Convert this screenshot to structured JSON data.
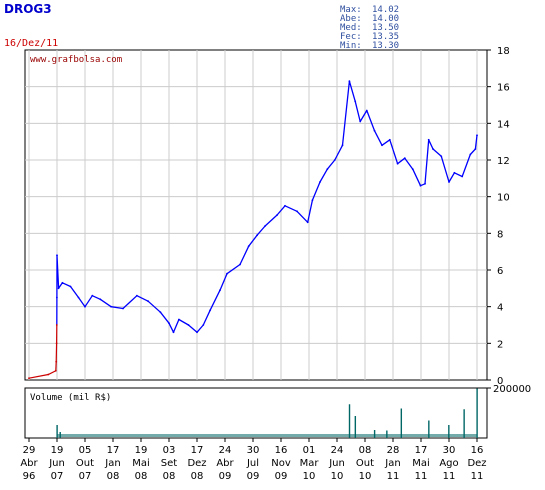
{
  "header": {
    "ticker": "DROG3",
    "date": "16/Dez/11",
    "watermark": "www.grafbolsa.com",
    "stats": [
      {
        "label": "Max:",
        "value": "14.02"
      },
      {
        "label": "Abe:",
        "value": "14.00"
      },
      {
        "label": "Med:",
        "value": "13.50"
      },
      {
        "label": "Fec:",
        "value": "13.35"
      },
      {
        "label": "Min:",
        "value": "13.30"
      }
    ]
  },
  "colors": {
    "ticker": "#0000cc",
    "date": "#cc0000",
    "watermark": "#990000",
    "stats": "#2f4f9f",
    "price_line": "#0000ff",
    "volume_bars": "#006666",
    "grid": "#cccccc",
    "frame": "#000000",
    "early_price": "#cc0000"
  },
  "chart_data": [
    {
      "type": "line",
      "name": "price",
      "y_range": [
        0,
        18
      ],
      "y_ticks": [
        0,
        2,
        4,
        6,
        8,
        10,
        12,
        14,
        16,
        18
      ],
      "x_range": [
        "1996-04-29",
        "2011-12-16"
      ],
      "points": [
        [
          "1996-04-29",
          0.1
        ],
        [
          "2004-01-01",
          0.3
        ],
        [
          "2007-01-01",
          0.5
        ],
        [
          "2007-03-01",
          1.0
        ],
        [
          "2007-04-15",
          2.0
        ],
        [
          "2007-05-15",
          3.0
        ],
        [
          "2007-06-05",
          4.5
        ],
        [
          "2007-06-19",
          6.8
        ],
        [
          "2007-06-25",
          5.0
        ],
        [
          "2007-07-10",
          5.3
        ],
        [
          "2007-08-10",
          5.1
        ],
        [
          "2007-09-10",
          4.5
        ],
        [
          "2007-10-05",
          4.0
        ],
        [
          "2007-11-01",
          4.6
        ],
        [
          "2007-12-01",
          4.4
        ],
        [
          "2008-01-10",
          4.0
        ],
        [
          "2008-03-01",
          3.9
        ],
        [
          "2008-05-01",
          4.6
        ],
        [
          "2008-06-15",
          4.3
        ],
        [
          "2008-08-01",
          3.7
        ],
        [
          "2008-09-03",
          3.1
        ],
        [
          "2008-09-20",
          2.6
        ],
        [
          "2008-10-10",
          3.3
        ],
        [
          "2008-11-15",
          3.0
        ],
        [
          "2008-12-17",
          2.6
        ],
        [
          "2009-01-15",
          3.0
        ],
        [
          "2009-02-15",
          3.8
        ],
        [
          "2009-04-01",
          4.9
        ],
        [
          "2009-05-01",
          5.8
        ],
        [
          "2009-06-15",
          6.3
        ],
        [
          "2009-07-15",
          7.3
        ],
        [
          "2009-08-15",
          7.9
        ],
        [
          "2009-09-15",
          8.4
        ],
        [
          "2009-11-01",
          9.0
        ],
        [
          "2009-12-01",
          9.5
        ],
        [
          "2010-01-15",
          9.2
        ],
        [
          "2010-02-24",
          8.6
        ],
        [
          "2010-03-15",
          9.8
        ],
        [
          "2010-04-15",
          10.8
        ],
        [
          "2010-05-15",
          11.5
        ],
        [
          "2010-06-15",
          12.0
        ],
        [
          "2010-07-15",
          12.8
        ],
        [
          "2010-08-10",
          16.3
        ],
        [
          "2010-09-01",
          15.2
        ],
        [
          "2010-09-20",
          14.1
        ],
        [
          "2010-10-15",
          14.7
        ],
        [
          "2010-11-15",
          13.6
        ],
        [
          "2010-12-15",
          12.8
        ],
        [
          "2011-01-15",
          13.1
        ],
        [
          "2011-02-15",
          11.8
        ],
        [
          "2011-03-15",
          12.1
        ],
        [
          "2011-04-15",
          11.5
        ],
        [
          "2011-05-15",
          10.6
        ],
        [
          "2011-06-01",
          10.7
        ],
        [
          "2011-06-15",
          13.1
        ],
        [
          "2011-07-01",
          12.6
        ],
        [
          "2011-08-01",
          12.2
        ],
        [
          "2011-08-30",
          10.8
        ],
        [
          "2011-09-20",
          11.3
        ],
        [
          "2011-10-20",
          11.1
        ],
        [
          "2011-11-20",
          12.3
        ],
        [
          "2011-12-10",
          12.6
        ],
        [
          "2011-12-16",
          13.35
        ]
      ]
    },
    {
      "type": "bar",
      "name": "volume",
      "label": "Volume (mil R$)",
      "y_range": [
        0,
        200000
      ],
      "y_ticks": [
        200000
      ],
      "spikes": [
        [
          "2007-06-19",
          52000
        ],
        [
          "2007-07-01",
          24000
        ],
        [
          "2010-08-10",
          135000
        ],
        [
          "2010-09-01",
          88000
        ],
        [
          "2010-11-15",
          32000
        ],
        [
          "2011-01-03",
          30000
        ],
        [
          "2011-03-01",
          118000
        ],
        [
          "2011-06-15",
          70000
        ],
        [
          "2011-08-29",
          52000
        ],
        [
          "2011-10-27",
          115000
        ],
        [
          "2011-12-16",
          198000
        ]
      ]
    }
  ],
  "x_axis": {
    "labels": [
      {
        "date": "1996-04-29",
        "day": "29",
        "month": "Abr",
        "year": "96"
      },
      {
        "date": "2007-06-19",
        "day": "19",
        "month": "Jun",
        "year": "07"
      },
      {
        "date": "2007-10-05",
        "day": "05",
        "month": "Out",
        "year": "07"
      },
      {
        "date": "2008-01-17",
        "day": "17",
        "month": "Jan",
        "year": "08"
      },
      {
        "date": "2008-05-19",
        "day": "19",
        "month": "Mai",
        "year": "08"
      },
      {
        "date": "2008-09-03",
        "day": "03",
        "month": "Set",
        "year": "08"
      },
      {
        "date": "2008-12-17",
        "day": "17",
        "month": "Dez",
        "year": "08"
      },
      {
        "date": "2009-04-24",
        "day": "24",
        "month": "Abr",
        "year": "09"
      },
      {
        "date": "2009-07-30",
        "day": "30",
        "month": "Jul",
        "year": "09"
      },
      {
        "date": "2009-11-16",
        "day": "16",
        "month": "Nov",
        "year": "09"
      },
      {
        "date": "2010-03-01",
        "day": "01",
        "month": "Mar",
        "year": "10"
      },
      {
        "date": "2010-06-24",
        "day": "24",
        "month": "Jun",
        "year": "10"
      },
      {
        "date": "2010-10-08",
        "day": "08",
        "month": "Out",
        "year": "10"
      },
      {
        "date": "2011-01-28",
        "day": "28",
        "month": "Jan",
        "year": "11"
      },
      {
        "date": "2011-05-17",
        "day": "17",
        "month": "Mai",
        "year": "11"
      },
      {
        "date": "2011-08-30",
        "day": "30",
        "month": "Ago",
        "year": "11"
      },
      {
        "date": "2011-12-16",
        "day": "16",
        "month": "Dez",
        "year": "11"
      }
    ]
  }
}
